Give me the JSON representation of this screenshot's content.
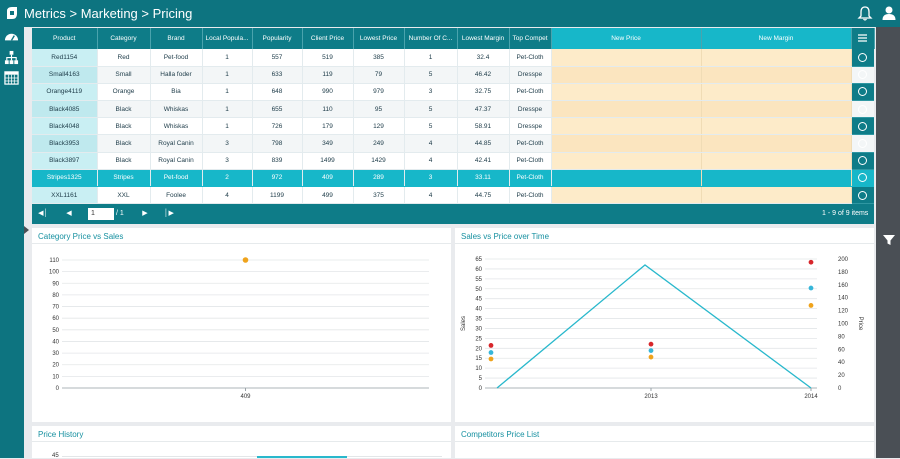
{
  "header": {
    "breadcrumb": "Metrics > Marketing > Pricing"
  },
  "icons": {
    "logo": "app-logo-icon",
    "bell": "bell-icon",
    "user": "user-icon",
    "nav": [
      "dashboard-icon",
      "hierarchy-icon",
      "calendar-icon"
    ],
    "filter": "filter-icon",
    "menu": "menu-icon"
  },
  "grid": {
    "columns": [
      "Product",
      "Category",
      "Brand",
      "Local Popula...",
      "Popularity",
      "Client Price",
      "Lowest Price",
      "Number Of C...",
      "Lowest Margin",
      "Top Compet",
      "New Price",
      "New Margin"
    ],
    "rows": [
      [
        "Red1154",
        "Red",
        "Pet-food",
        "1",
        "557",
        "519",
        "385",
        "1",
        "32.4",
        "Pet-Cloth"
      ],
      [
        "Small4163",
        "Small",
        "Halla foder",
        "1",
        "633",
        "119",
        "79",
        "5",
        "46.42",
        "Dresspe"
      ],
      [
        "Orange4119",
        "Orange",
        "Bia",
        "1",
        "648",
        "990",
        "979",
        "3",
        "32.75",
        "Pet-Cloth"
      ],
      [
        "Black4085",
        "Black",
        "Whiskas",
        "1",
        "655",
        "110",
        "95",
        "5",
        "47.37",
        "Dresspe"
      ],
      [
        "Black4048",
        "Black",
        "Whiskas",
        "1",
        "726",
        "179",
        "129",
        "5",
        "58.91",
        "Dresspe"
      ],
      [
        "Black3953",
        "Black",
        "Royal Canin",
        "3",
        "798",
        "349",
        "249",
        "4",
        "44.85",
        "Pet-Cloth"
      ],
      [
        "Black3897",
        "Black",
        "Royal Canin",
        "3",
        "839",
        "1499",
        "1429",
        "4",
        "42.41",
        "Pet-Cloth"
      ],
      [
        "Stripes1325",
        "Stripes",
        "Pet-food",
        "2",
        "972",
        "409",
        "289",
        "3",
        "33.11",
        "Pet-Cloth"
      ],
      [
        "XXL1161",
        "XXL",
        "Foolee",
        "4",
        "1199",
        "499",
        "375",
        "4",
        "44.75",
        "Pet-Cloth"
      ]
    ],
    "selected_row": 7
  },
  "pager": {
    "page": "1",
    "total": "/ 1",
    "info": "1 - 9 of 9 items"
  },
  "panels": {
    "category_title": "Category Price vs Sales",
    "sales_title": "Sales vs Price over Time",
    "history_title": "Price History",
    "competitors_title": "Competitors Price List",
    "history_first_tick": "45"
  },
  "colors": {
    "teal": "#0e7c88",
    "selected": "#17b7c9",
    "new_price": "#fdebc9",
    "line": "#29b8cc",
    "red": "#d7262b",
    "blue": "#36b6d9",
    "orange": "#efa31c"
  },
  "chart_data": [
    {
      "type": "scatter",
      "title": "Category Price vs Sales",
      "categories": [
        "409"
      ],
      "points": [
        {
          "x": "409",
          "y": 110
        }
      ],
      "yticks": [
        0,
        10,
        20,
        30,
        40,
        50,
        60,
        70,
        80,
        90,
        100,
        110
      ],
      "ylim": [
        0,
        110
      ],
      "grid": true
    },
    {
      "type": "line",
      "title": "Sales vs Price over Time",
      "x": [
        "2013",
        "2014"
      ],
      "ylabel": "Sales",
      "y2label": "Price",
      "ylim": [
        0,
        65
      ],
      "y2lim": [
        0,
        200
      ],
      "yticks": [
        0,
        5,
        10,
        15,
        20,
        25,
        30,
        35,
        40,
        45,
        50,
        55,
        60,
        65
      ],
      "y2ticks": [
        0,
        20,
        40,
        60,
        80,
        100,
        120,
        140,
        160,
        180,
        200
      ],
      "line": [
        {
          "x": "",
          "y": 0
        },
        {
          "x": "",
          "y": 62
        },
        {
          "x": "2014",
          "y": 0
        }
      ],
      "scatter": [
        {
          "x": "",
          "price": [
            66,
            55,
            45
          ]
        },
        {
          "x": "2013",
          "price": [
            68,
            58,
            48
          ]
        },
        {
          "x": "2014",
          "price": [
            195,
            155,
            128
          ]
        }
      ]
    }
  ]
}
